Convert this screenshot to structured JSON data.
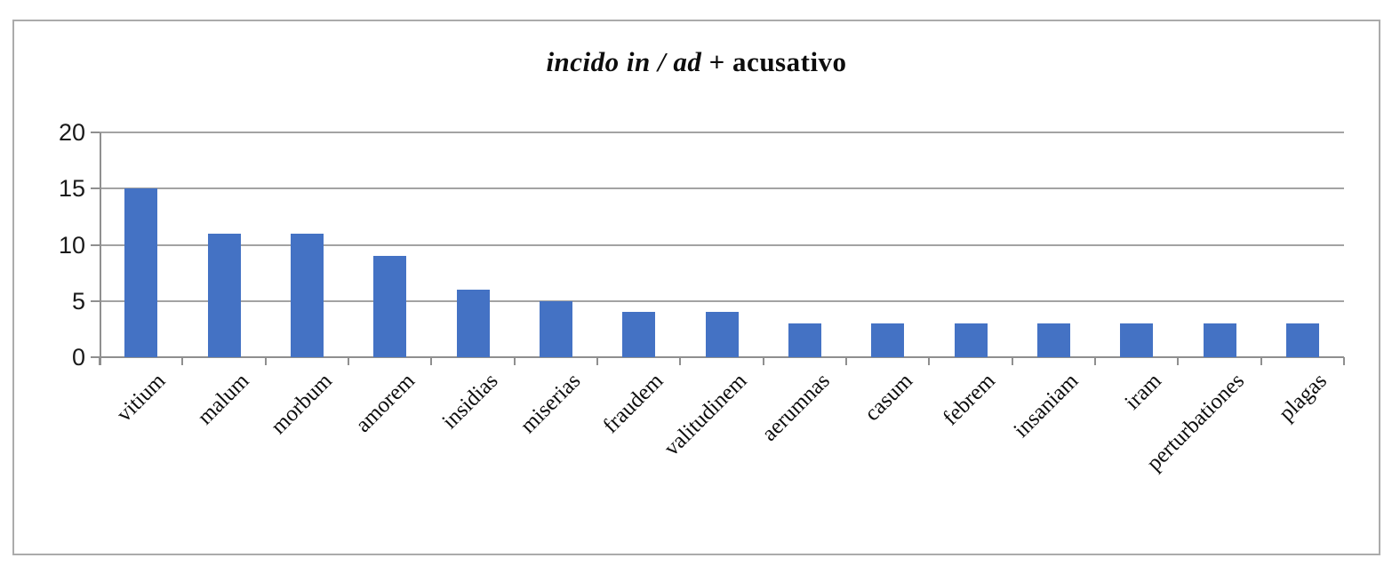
{
  "chart_data": {
    "type": "bar",
    "title": {
      "italic_part": "incido in / ad",
      "plain_part": " + acusativo",
      "full": "incido in / ad + acusativo"
    },
    "categories": [
      "vitium",
      "malum",
      "morbum",
      "amorem",
      "insidias",
      "miserias",
      "fraudem",
      "valitudinem",
      "aerumnas",
      "casum",
      "febrem",
      "insaniam",
      "iram",
      "perturbationes",
      "plagas"
    ],
    "values": [
      15,
      11,
      11,
      9,
      6,
      5,
      4,
      4,
      3,
      3,
      3,
      3,
      3,
      3,
      3
    ],
    "yticks": [
      20,
      15,
      10,
      5,
      0
    ],
    "ylim": [
      0,
      20
    ],
    "xlabel": "",
    "ylabel": "",
    "grid": true,
    "legend": false,
    "colors": {
      "bar": "#4472C4",
      "gridline": "#a3a3a3",
      "axis": "#8f8f8f",
      "frame_border": "#ababab",
      "title_text": "#0d0d0d",
      "tick_text": "#1a1a1a"
    }
  }
}
